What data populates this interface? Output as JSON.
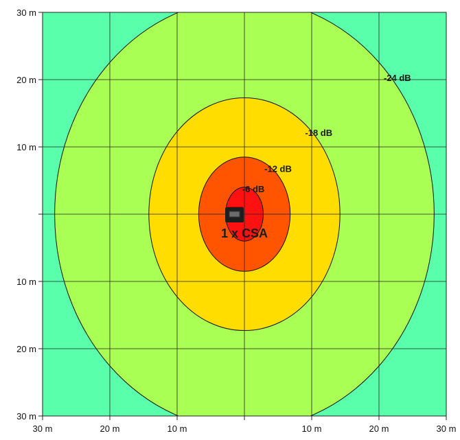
{
  "chart_data": {
    "type": "contour",
    "xlim": [
      -30,
      30
    ],
    "ylim": [
      -30,
      30
    ],
    "unit": "m",
    "grid": true,
    "background_color": "#59ffaa",
    "x_tick_labels": [
      "30 m",
      "20 m",
      "10 m",
      "",
      "10 m",
      "20 m",
      "30 m"
    ],
    "y_tick_labels": [
      "30 m",
      "20 m",
      "10 m",
      "",
      "10 m",
      "20 m",
      "30 m"
    ],
    "contours": [
      {
        "label": "-24 dB",
        "rx": 28.2,
        "ry": 32,
        "color": "#aaff55"
      },
      {
        "label": "-18 dB",
        "rx": 14.2,
        "ry": 17.3,
        "color": "#ffdd00"
      },
      {
        "label": "-12 dB",
        "rx": 6.8,
        "ry": 8.5,
        "color": "#ff5500"
      },
      {
        "label": "-6 dB",
        "rx": 2.8,
        "ry": 4.0,
        "color": "#ff1111"
      }
    ],
    "source": {
      "label": "1 x CSA",
      "x": 0,
      "y": 0
    }
  }
}
